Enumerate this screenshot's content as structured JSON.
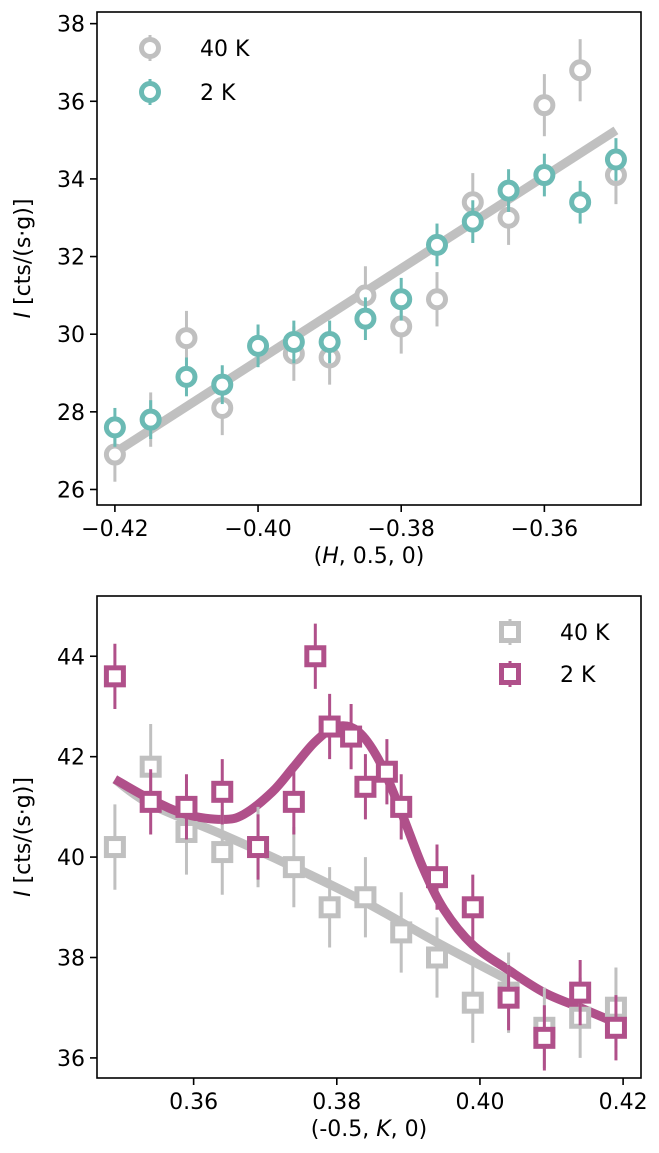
{
  "chart_data": [
    {
      "type": "scatter",
      "title": "",
      "xlabel": "(H, 0.5, 0)",
      "xlabel_parts": {
        "open": "(",
        "var": "H",
        "rest": ", 0.5, 0)"
      },
      "ylabel": "I [cts/(s·g)]",
      "ylabel_parts": {
        "var": "I",
        "rest": " [cts/(s·g)]"
      },
      "xlim": [
        -0.4225,
        -0.3465
      ],
      "ylim": [
        25.6,
        38.3
      ],
      "xticks": [
        -0.42,
        -0.4,
        -0.38,
        -0.36
      ],
      "xtick_labels": [
        "−0.42",
        "−0.40",
        "−0.38",
        "−0.36"
      ],
      "yticks": [
        26,
        28,
        30,
        32,
        34,
        36,
        38
      ],
      "ytick_labels": [
        "26",
        "28",
        "30",
        "32",
        "34",
        "36",
        "38"
      ],
      "legend_position": "top-left",
      "grid": false,
      "series": [
        {
          "name": "40 K",
          "color": "#c0c0c0",
          "marker": "circle",
          "x": [
            -0.42,
            -0.415,
            -0.41,
            -0.405,
            -0.395,
            -0.39,
            -0.385,
            -0.38,
            -0.375,
            -0.37,
            -0.365,
            -0.36,
            -0.355,
            -0.35
          ],
          "y": [
            26.9,
            27.8,
            29.9,
            28.1,
            29.5,
            29.4,
            31.0,
            30.2,
            30.9,
            33.4,
            33.0,
            35.9,
            36.8,
            34.1
          ],
          "err": [
            0.7,
            0.7,
            0.7,
            0.7,
            0.7,
            0.7,
            0.75,
            0.7,
            0.7,
            0.75,
            0.7,
            0.8,
            0.8,
            0.75
          ]
        },
        {
          "name": "2 K",
          "color": "#6bbab4",
          "marker": "circle",
          "x": [
            -0.42,
            -0.415,
            -0.41,
            -0.405,
            -0.4,
            -0.395,
            -0.39,
            -0.385,
            -0.38,
            -0.375,
            -0.37,
            -0.365,
            -0.36,
            -0.355,
            -0.35
          ],
          "y": [
            27.6,
            27.8,
            28.9,
            28.7,
            29.7,
            29.8,
            29.8,
            30.4,
            30.9,
            32.3,
            32.9,
            33.7,
            34.1,
            33.4,
            34.5
          ],
          "err": [
            0.5,
            0.5,
            0.5,
            0.5,
            0.55,
            0.55,
            0.55,
            0.55,
            0.55,
            0.55,
            0.55,
            0.55,
            0.55,
            0.55,
            0.55
          ]
        }
      ],
      "fits": [
        {
          "color": "#c0c0c0",
          "x": [
            -0.42,
            -0.35
          ],
          "y": [
            26.95,
            35.25
          ]
        }
      ]
    },
    {
      "type": "scatter",
      "title": "",
      "xlabel": "(-0.5, K, 0)",
      "xlabel_parts": {
        "open": "(-0.5, ",
        "var": "K",
        "rest": ", 0)"
      },
      "ylabel": "I [cts/(s·g)]",
      "ylabel_parts": {
        "var": "I",
        "rest": " [cts/(s·g)]"
      },
      "xlim": [
        0.3465,
        0.4225
      ],
      "ylim": [
        35.6,
        45.2
      ],
      "xticks": [
        0.36,
        0.38,
        0.4,
        0.42
      ],
      "xtick_labels": [
        "0.36",
        "0.38",
        "0.40",
        "0.42"
      ],
      "yticks": [
        36,
        38,
        40,
        42,
        44
      ],
      "ytick_labels": [
        "36",
        "38",
        "40",
        "42",
        "44"
      ],
      "legend_position": "top-right",
      "grid": false,
      "series": [
        {
          "name": "40 K",
          "color": "#c0c0c0",
          "marker": "square",
          "x": [
            0.349,
            0.354,
            0.359,
            0.364,
            0.369,
            0.374,
            0.379,
            0.384,
            0.389,
            0.394,
            0.399,
            0.404,
            0.409,
            0.414,
            0.419
          ],
          "y": [
            40.2,
            41.8,
            40.5,
            40.1,
            40.2,
            39.8,
            39.0,
            39.2,
            38.5,
            38.0,
            37.1,
            37.3,
            36.6,
            36.8,
            37.0
          ],
          "err": [
            0.85,
            0.85,
            0.85,
            0.85,
            0.8,
            0.8,
            0.8,
            0.8,
            0.8,
            0.8,
            0.8,
            0.8,
            0.8,
            0.8,
            0.8
          ]
        },
        {
          "name": "2 K",
          "color": "#b0508a",
          "marker": "square",
          "x": [
            0.349,
            0.354,
            0.359,
            0.364,
            0.369,
            0.374,
            0.377,
            0.379,
            0.382,
            0.384,
            0.387,
            0.389,
            0.394,
            0.399,
            0.404,
            0.409,
            0.414,
            0.419
          ],
          "y": [
            43.6,
            41.1,
            41.0,
            41.3,
            40.2,
            41.1,
            44.0,
            42.6,
            42.4,
            41.4,
            41.7,
            41.0,
            39.6,
            39.0,
            37.2,
            36.4,
            37.3,
            36.6
          ],
          "err": [
            0.65,
            0.65,
            0.65,
            0.65,
            0.65,
            0.65,
            0.65,
            0.65,
            0.65,
            0.65,
            0.65,
            0.65,
            0.65,
            0.65,
            0.65,
            0.65,
            0.65,
            0.65
          ]
        }
      ],
      "fits": [
        {
          "color": "#c0c0c0",
          "x": [
            0.349,
            0.354,
            0.364,
            0.374,
            0.384,
            0.394,
            0.404
          ],
          "y": [
            41.55,
            41.05,
            40.45,
            39.8,
            39.1,
            38.3,
            37.55
          ]
        },
        {
          "color": "#b0508a",
          "x": [
            0.349,
            0.354,
            0.359,
            0.364,
            0.367,
            0.371,
            0.374,
            0.377,
            0.38,
            0.383,
            0.386,
            0.389,
            0.392,
            0.395,
            0.399,
            0.404,
            0.409,
            0.414,
            0.419
          ],
          "y": [
            41.55,
            41.15,
            40.85,
            40.75,
            40.85,
            41.3,
            41.8,
            42.3,
            42.6,
            42.5,
            41.9,
            40.9,
            39.8,
            38.95,
            38.25,
            37.75,
            37.3,
            37.0,
            36.7
          ]
        }
      ]
    }
  ]
}
